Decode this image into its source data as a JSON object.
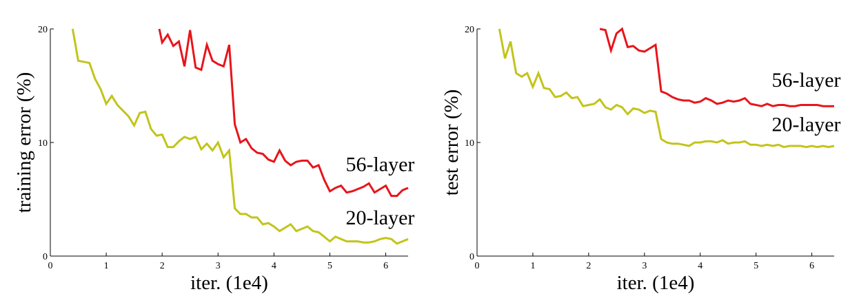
{
  "chart_data": [
    {
      "type": "line",
      "title": "",
      "xlabel": "iter. (1e4)",
      "ylabel": "training error (%)",
      "xlim": [
        0,
        6.4
      ],
      "ylim": [
        0,
        20
      ],
      "xticks": [
        0,
        1,
        2,
        3,
        4,
        5,
        6
      ],
      "yticks": [
        0,
        10,
        20
      ],
      "xtick_labels": [
        "0",
        "1",
        "2",
        "3",
        "4",
        "5",
        "6"
      ],
      "ytick_labels": [
        "0",
        "10",
        "20"
      ],
      "grid": false,
      "series": [
        {
          "name": "56-layer",
          "color": "#e8141a",
          "x": [
            1.95,
            2.0,
            2.1,
            2.2,
            2.3,
            2.4,
            2.5,
            2.6,
            2.7,
            2.8,
            2.9,
            3.0,
            3.1,
            3.2,
            3.3,
            3.4,
            3.5,
            3.6,
            3.7,
            3.8,
            3.9,
            4.0,
            4.1,
            4.2,
            4.3,
            4.4,
            4.5,
            4.6,
            4.7,
            4.8,
            4.9,
            5.0,
            5.1,
            5.2,
            5.3,
            5.4,
            5.5,
            5.6,
            5.7,
            5.8,
            5.9,
            6.0,
            6.1,
            6.2,
            6.3,
            6.4
          ],
          "y": [
            20.0,
            18.8,
            19.5,
            18.5,
            18.9,
            16.7,
            19.9,
            16.6,
            16.4,
            18.6,
            17.2,
            16.9,
            16.7,
            18.6,
            11.6,
            10.0,
            10.3,
            9.5,
            9.1,
            9.0,
            8.5,
            8.3,
            9.3,
            8.4,
            8.0,
            8.3,
            8.4,
            8.4,
            7.8,
            8.0,
            6.7,
            5.7,
            6.0,
            6.2,
            5.6,
            5.7,
            5.9,
            6.1,
            6.4,
            5.6,
            5.9,
            6.2,
            5.3,
            5.3,
            5.8,
            6.0
          ]
        },
        {
          "name": "20-layer",
          "color": "#c2c41a",
          "x": [
            0.4,
            0.5,
            0.6,
            0.7,
            0.8,
            0.9,
            1.0,
            1.1,
            1.2,
            1.3,
            1.4,
            1.5,
            1.6,
            1.7,
            1.8,
            1.9,
            2.0,
            2.1,
            2.2,
            2.3,
            2.4,
            2.5,
            2.6,
            2.7,
            2.8,
            2.9,
            3.0,
            3.1,
            3.2,
            3.3,
            3.4,
            3.5,
            3.6,
            3.7,
            3.8,
            3.9,
            4.0,
            4.1,
            4.2,
            4.3,
            4.4,
            4.5,
            4.6,
            4.7,
            4.8,
            4.9,
            5.0,
            5.1,
            5.2,
            5.3,
            5.4,
            5.5,
            5.6,
            5.7,
            5.8,
            5.9,
            6.0,
            6.1,
            6.2,
            6.3,
            6.4
          ],
          "y": [
            20.0,
            17.2,
            17.1,
            17.0,
            15.6,
            14.7,
            13.4,
            14.1,
            13.3,
            12.8,
            12.3,
            11.5,
            12.6,
            12.7,
            11.2,
            10.6,
            10.7,
            9.6,
            9.6,
            10.1,
            10.5,
            10.3,
            10.5,
            9.4,
            9.9,
            9.3,
            10.0,
            8.7,
            9.3,
            4.2,
            3.7,
            3.7,
            3.4,
            3.4,
            2.8,
            2.9,
            2.6,
            2.2,
            2.5,
            2.8,
            2.2,
            2.4,
            2.6,
            2.2,
            2.1,
            1.7,
            1.3,
            1.7,
            1.5,
            1.3,
            1.3,
            1.3,
            1.2,
            1.2,
            1.3,
            1.5,
            1.6,
            1.5,
            1.1,
            1.3,
            1.5
          ]
        }
      ],
      "annotations": [
        {
          "text": "56-layer",
          "x": 5.9,
          "y": 7.5
        },
        {
          "text": "20-layer",
          "x": 5.9,
          "y": 2.8
        }
      ]
    },
    {
      "type": "line",
      "title": "",
      "xlabel": "iter. (1e4)",
      "ylabel": "test error (%)",
      "xlim": [
        0,
        6.4
      ],
      "ylim": [
        0,
        20
      ],
      "xticks": [
        0,
        1,
        2,
        3,
        4,
        5,
        6
      ],
      "yticks": [
        0,
        10,
        20
      ],
      "xtick_labels": [
        "0",
        "1",
        "2",
        "3",
        "4",
        "5",
        "6"
      ],
      "ytick_labels": [
        "0",
        "10",
        "20"
      ],
      "grid": false,
      "series": [
        {
          "name": "56-layer",
          "color": "#e8141a",
          "x": [
            2.2,
            2.3,
            2.4,
            2.5,
            2.6,
            2.7,
            2.8,
            2.9,
            3.0,
            3.1,
            3.2,
            3.3,
            3.4,
            3.5,
            3.6,
            3.7,
            3.8,
            3.9,
            4.0,
            4.1,
            4.2,
            4.3,
            4.4,
            4.5,
            4.6,
            4.7,
            4.8,
            4.9,
            5.0,
            5.1,
            5.2,
            5.3,
            5.4,
            5.5,
            5.6,
            5.7,
            5.8,
            5.9,
            6.0,
            6.1,
            6.2,
            6.3,
            6.4
          ],
          "y": [
            20.0,
            19.9,
            18.1,
            19.6,
            20.0,
            18.4,
            18.5,
            18.1,
            18.0,
            18.3,
            18.6,
            14.5,
            14.3,
            14.0,
            13.8,
            13.7,
            13.7,
            13.5,
            13.6,
            13.9,
            13.7,
            13.4,
            13.5,
            13.7,
            13.6,
            13.7,
            13.9,
            13.4,
            13.3,
            13.2,
            13.4,
            13.2,
            13.3,
            13.3,
            13.2,
            13.2,
            13.3,
            13.3,
            13.3,
            13.3,
            13.2,
            13.2,
            13.2
          ]
        },
        {
          "name": "20-layer",
          "color": "#c2c41a",
          "x": [
            0.4,
            0.5,
            0.6,
            0.7,
            0.8,
            0.9,
            1.0,
            1.1,
            1.2,
            1.3,
            1.4,
            1.5,
            1.6,
            1.7,
            1.8,
            1.9,
            2.0,
            2.1,
            2.2,
            2.3,
            2.4,
            2.5,
            2.6,
            2.7,
            2.8,
            2.9,
            3.0,
            3.1,
            3.2,
            3.3,
            3.4,
            3.5,
            3.6,
            3.7,
            3.8,
            3.9,
            4.0,
            4.1,
            4.2,
            4.3,
            4.4,
            4.5,
            4.6,
            4.7,
            4.8,
            4.9,
            5.0,
            5.1,
            5.2,
            5.3,
            5.4,
            5.5,
            5.6,
            5.7,
            5.8,
            5.9,
            6.0,
            6.1,
            6.2,
            6.3,
            6.4
          ],
          "y": [
            20.0,
            17.4,
            18.9,
            16.1,
            15.8,
            16.1,
            14.9,
            16.1,
            14.8,
            14.7,
            14.0,
            14.1,
            14.4,
            13.9,
            14.0,
            13.2,
            13.3,
            13.4,
            13.8,
            13.1,
            12.9,
            13.3,
            13.1,
            12.5,
            13.0,
            12.9,
            12.6,
            12.8,
            12.7,
            10.3,
            10.0,
            9.9,
            9.9,
            9.8,
            9.7,
            10.0,
            10.0,
            10.1,
            10.1,
            10.0,
            10.2,
            9.9,
            10.0,
            10.0,
            10.1,
            9.8,
            9.8,
            9.7,
            9.8,
            9.7,
            9.8,
            9.6,
            9.7,
            9.7,
            9.7,
            9.6,
            9.7,
            9.6,
            9.7,
            9.6,
            9.7
          ]
        }
      ],
      "annotations": [
        {
          "text": "56-layer",
          "x": 5.9,
          "y": 14.9
        },
        {
          "text": "20-layer",
          "x": 5.9,
          "y": 11.0
        }
      ]
    }
  ]
}
